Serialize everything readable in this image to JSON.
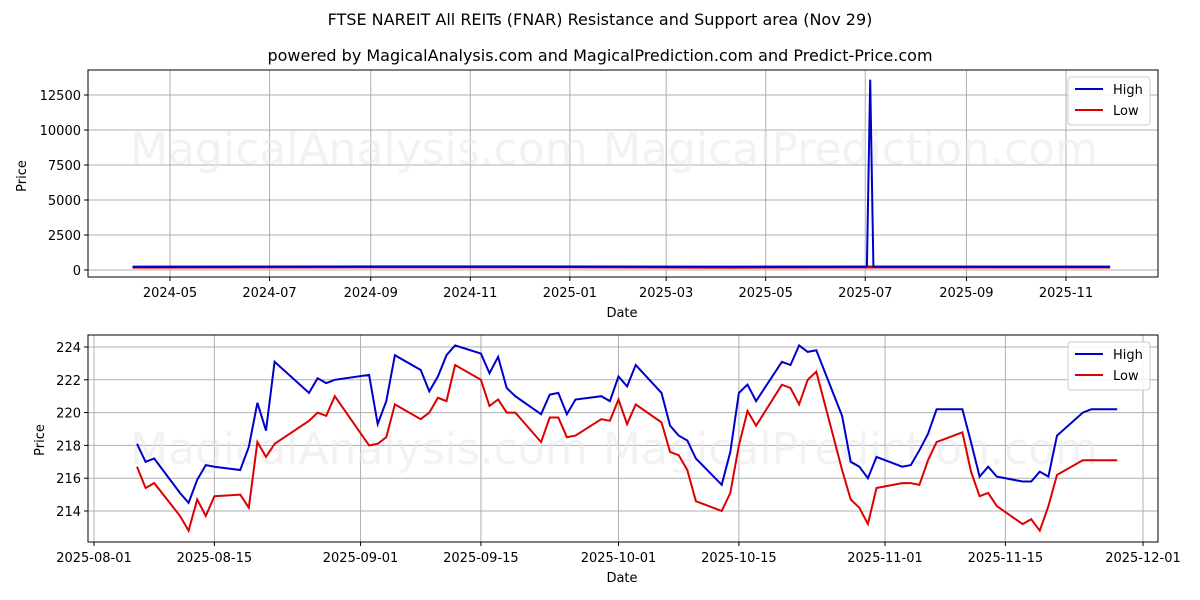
{
  "title": "FTSE NAREIT All REITs (FNAR) Resistance and Support area (Nov 29)",
  "subtitle": "powered by MagicalAnalysis.com and MagicalPrediction.com and Predict-Price.com",
  "watermarks": [
    "MagicalAnalysis.com",
    "MagicalPrediction.com"
  ],
  "colors": {
    "high": "#0000cc",
    "low": "#dd0000",
    "grid": "#b0b0b0"
  },
  "chart_data": [
    {
      "type": "line",
      "title": "Long-range view",
      "xlabel": "Date",
      "ylabel": "Price",
      "ylim": [
        -500,
        14200
      ],
      "yticks": [
        0,
        2500,
        5000,
        7500,
        10000,
        12500
      ],
      "xticks": [
        "2024-05",
        "2024-07",
        "2024-09",
        "2024-11",
        "2025-01",
        "2025-03",
        "2025-05",
        "2025-07",
        "2025-09",
        "2025-11"
      ],
      "legend": [
        "High",
        "Low"
      ],
      "legend_position": "upper right",
      "grid": true,
      "series": [
        {
          "name": "High",
          "x": [
            "2024-04-08",
            "2024-09-01",
            "2025-01-01",
            "2025-06-30",
            "2025-07-02",
            "2025-07-04",
            "2025-07-06",
            "2025-11-28"
          ],
          "values": [
            225,
            240,
            235,
            230,
            230,
            13600,
            230,
            220
          ]
        },
        {
          "name": "Low",
          "x": [
            "2024-04-08",
            "2024-09-01",
            "2025-01-01",
            "2025-04-10",
            "2025-06-30",
            "2025-11-28"
          ],
          "values": [
            210,
            225,
            220,
            200,
            215,
            217
          ]
        }
      ]
    },
    {
      "type": "line",
      "title": "Recent view",
      "xlabel": "Date",
      "ylabel": "Price",
      "ylim": [
        212.4,
        224.7
      ],
      "yticks": [
        214,
        216,
        218,
        220,
        222,
        224
      ],
      "xticks": [
        "2025-08-01",
        "2025-08-15",
        "2025-09-01",
        "2025-09-15",
        "2025-10-01",
        "2025-10-15",
        "2025-11-01",
        "2025-11-15",
        "2025-12-01"
      ],
      "legend": [
        "High",
        "Low"
      ],
      "legend_position": "upper right",
      "grid": true,
      "x": [
        "2025-08-06",
        "2025-08-07",
        "2025-08-08",
        "2025-08-11",
        "2025-08-12",
        "2025-08-13",
        "2025-08-14",
        "2025-08-15",
        "2025-08-18",
        "2025-08-19",
        "2025-08-20",
        "2025-08-21",
        "2025-08-22",
        "2025-08-26",
        "2025-08-27",
        "2025-08-28",
        "2025-08-29",
        "2025-09-02",
        "2025-09-03",
        "2025-09-04",
        "2025-09-05",
        "2025-09-08",
        "2025-09-09",
        "2025-09-10",
        "2025-09-11",
        "2025-09-12",
        "2025-09-15",
        "2025-09-16",
        "2025-09-17",
        "2025-09-18",
        "2025-09-19",
        "2025-09-22",
        "2025-09-23",
        "2025-09-24",
        "2025-09-25",
        "2025-09-26",
        "2025-09-29",
        "2025-09-30",
        "2025-10-01",
        "2025-10-02",
        "2025-10-03",
        "2025-10-06",
        "2025-10-07",
        "2025-10-08",
        "2025-10-09",
        "2025-10-10",
        "2025-10-13",
        "2025-10-14",
        "2025-10-15",
        "2025-10-16",
        "2025-10-17",
        "2025-10-20",
        "2025-10-21",
        "2025-10-22",
        "2025-10-23",
        "2025-10-24",
        "2025-10-27",
        "2025-10-28",
        "2025-10-29",
        "2025-10-30",
        "2025-10-31",
        "2025-11-03",
        "2025-11-04",
        "2025-11-05",
        "2025-11-06",
        "2025-11-07",
        "2025-11-10",
        "2025-11-11",
        "2025-11-12",
        "2025-11-13",
        "2025-11-14",
        "2025-11-17",
        "2025-11-18",
        "2025-11-19",
        "2025-11-20",
        "2025-11-21",
        "2025-11-24",
        "2025-11-25",
        "2025-11-26",
        "2025-11-27",
        "2025-11-28"
      ],
      "series": [
        {
          "name": "High",
          "values": [
            218.1,
            217.0,
            217.2,
            215.1,
            214.5,
            215.9,
            216.8,
            216.7,
            216.5,
            217.9,
            220.6,
            218.9,
            223.1,
            221.2,
            222.1,
            221.8,
            222.0,
            222.3,
            219.3,
            220.7,
            223.5,
            222.6,
            221.3,
            222.2,
            223.5,
            224.1,
            223.6,
            222.4,
            223.4,
            221.5,
            221.0,
            219.9,
            221.1,
            221.2,
            219.9,
            220.8,
            221.0,
            220.7,
            222.2,
            221.6,
            222.9,
            221.2,
            219.2,
            218.6,
            218.3,
            217.2,
            215.6,
            217.6,
            221.2,
            221.7,
            220.7,
            223.1,
            222.9,
            224.1,
            223.7,
            223.8,
            219.8,
            217.0,
            216.7,
            216.0,
            217.3,
            216.7,
            216.8,
            217.7,
            218.7,
            220.2,
            220.2,
            218.2,
            216.1,
            216.7,
            216.1,
            215.8,
            215.8,
            216.4,
            216.1,
            218.6,
            220.0,
            220.2,
            220.2,
            220.2,
            220.2
          ]
        },
        {
          "name": "Low",
          "values": [
            216.7,
            215.4,
            215.7,
            213.7,
            212.8,
            214.7,
            213.7,
            214.9,
            215.0,
            214.2,
            218.2,
            217.3,
            218.1,
            219.5,
            220.0,
            219.8,
            221.0,
            218.0,
            218.1,
            218.5,
            220.5,
            219.6,
            220.0,
            220.9,
            220.7,
            222.9,
            222.0,
            220.4,
            220.8,
            220.0,
            220.0,
            218.2,
            219.7,
            219.7,
            218.5,
            218.6,
            219.6,
            219.5,
            220.8,
            219.3,
            220.5,
            219.4,
            217.6,
            217.4,
            216.5,
            214.6,
            214.0,
            215.1,
            218.0,
            220.1,
            219.2,
            221.7,
            221.5,
            220.5,
            222.0,
            222.5,
            216.5,
            214.7,
            214.2,
            213.2,
            215.4,
            215.7,
            215.7,
            215.6,
            217.1,
            218.2,
            218.8,
            216.4,
            214.9,
            215.1,
            214.3,
            213.2,
            213.5,
            212.8,
            214.3,
            216.2,
            217.1,
            217.1,
            217.1,
            217.1,
            217.1
          ]
        }
      ]
    }
  ],
  "top_chart": {
    "ylabel": "Price",
    "xlabel": "Date",
    "yticks": [
      "0",
      "2500",
      "5000",
      "7500",
      "10000",
      "12500"
    ],
    "xticks": [
      "2024-05",
      "2024-07",
      "2024-09",
      "2024-11",
      "2025-01",
      "2025-03",
      "2025-05",
      "2025-07",
      "2025-09",
      "2025-11"
    ],
    "legend_high": "High",
    "legend_low": "Low"
  },
  "bottom_chart": {
    "ylabel": "Price",
    "xlabel": "Date",
    "yticks": [
      "214",
      "216",
      "218",
      "220",
      "222",
      "224"
    ],
    "xticks": [
      "2025-08-01",
      "2025-08-15",
      "2025-09-01",
      "2025-09-15",
      "2025-10-01",
      "2025-10-15",
      "2025-11-01",
      "2025-11-15",
      "2025-12-01"
    ],
    "legend_high": "High",
    "legend_low": "Low"
  }
}
